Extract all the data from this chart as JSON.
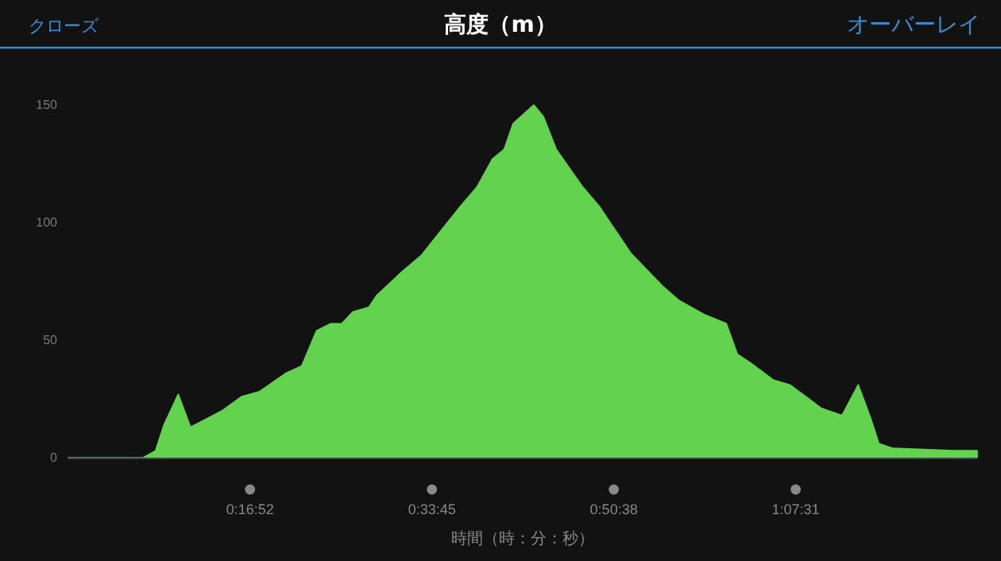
{
  "chart_data": {
    "type": "area",
    "title": "高度（m）",
    "xlabel": "時間（時：分：秒）",
    "annotations": [
      "クローズ",
      "オーバーレイ"
    ],
    "series": [
      {
        "color": "#62d24f",
        "x": [
          0,
          0.059,
          0.116,
          0.135,
          0.148,
          0.17,
          0.189,
          0.238,
          0.268,
          0.295,
          0.337,
          0.361,
          0.384,
          0.406,
          0.423,
          0.44,
          0.465,
          0.477,
          0.516,
          0.546,
          0.575,
          0.607,
          0.632,
          0.656,
          0.674,
          0.688,
          0.72,
          0.735,
          0.755,
          0.796,
          0.821,
          0.87,
          0.919,
          0.944,
          0.983,
          1.018,
          1.035,
          1.057,
          1.091,
          1.116,
          1.141,
          1.165,
          1.197,
          1.222,
          1.241,
          1.254,
          1.276,
          1.369,
          1.406
        ],
        "values": [
          0,
          0,
          0,
          3,
          14,
          27,
          13,
          20,
          26,
          28,
          36,
          39,
          54,
          57,
          57,
          62,
          64,
          69,
          79,
          86,
          96,
          107,
          115,
          127,
          131,
          142,
          150,
          145,
          131,
          115,
          107,
          87,
          73,
          67,
          61,
          57,
          44,
          40,
          33,
          31,
          26,
          21,
          18,
          31,
          17,
          6,
          4,
          3,
          3
        ]
      }
    ],
    "xlim": [
      0,
      1.406
    ],
    "ylim": [
      0,
      150
    ],
    "xticks": [
      {
        "value": 0.2811,
        "label": "0:16:52"
      },
      {
        "value": 0.5625,
        "label": "0:33:45"
      },
      {
        "value": 0.8439,
        "label": "0:50:38"
      },
      {
        "value": 1.1253,
        "label": "1:07:31"
      }
    ],
    "yticks": [
      0,
      50,
      100,
      150
    ],
    "grid": false
  }
}
